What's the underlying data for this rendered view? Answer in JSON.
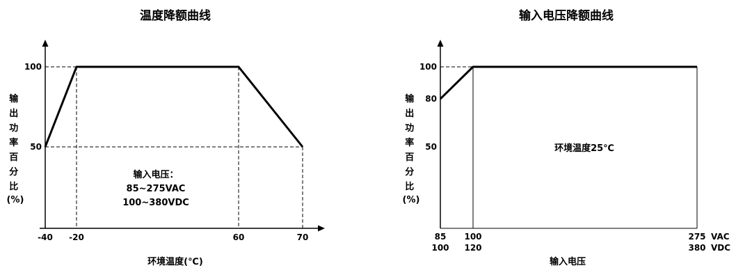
{
  "chart_data": [
    {
      "type": "line",
      "title": "温度降额曲线",
      "xlabel": "环境温度(℃)",
      "ylabel": "输出功率百分比(%)",
      "x_ticks": [
        "-40",
        "-20",
        "60",
        "70"
      ],
      "y_ticks": [
        "100",
        "50"
      ],
      "series": [
        {
          "x": [
            -40,
            -20,
            60,
            70
          ],
          "y": [
            50,
            100,
            100,
            50
          ]
        }
      ],
      "annotation": [
        "输入电压：",
        "85~275VAC",
        "100~380VDC"
      ],
      "ylim": [
        0,
        100
      ]
    },
    {
      "type": "line",
      "title": "输入电压降额曲线",
      "xlabel": "输入电压",
      "ylabel": "输出功率百分比(%)",
      "x_ticks_vac": [
        "85",
        "100",
        "275"
      ],
      "x_ticks_vdc": [
        "100",
        "120",
        "380"
      ],
      "x_unit_vac": "VAC",
      "x_unit_vdc": "VDC",
      "y_ticks": [
        "100",
        "80",
        "50"
      ],
      "series": [
        {
          "x": [
            85,
            100,
            275
          ],
          "y": [
            80,
            100,
            100
          ]
        }
      ],
      "annotation": [
        "环境温度25℃"
      ],
      "ylim": [
        0,
        100
      ]
    }
  ]
}
